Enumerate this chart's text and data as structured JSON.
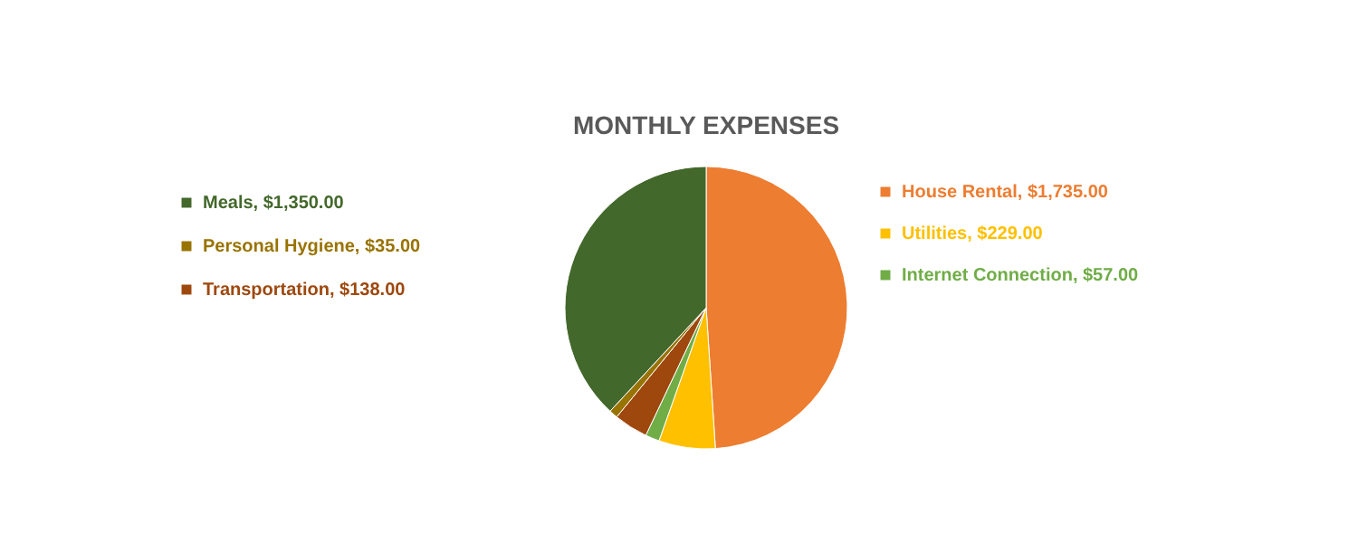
{
  "chart_data": {
    "type": "pie",
    "title": "MONTHLY EXPENSES",
    "categories": [
      "House Rental",
      "Utilities",
      "Internet Connection",
      "Transportation",
      "Personal Hygiene",
      "Meals"
    ],
    "values": [
      1735,
      229,
      57,
      138,
      35,
      1350
    ],
    "value_labels": [
      "$1,735.00",
      "$229.00",
      "$57.00",
      "$138.00",
      "$35.00",
      "$1,350.00"
    ],
    "colors": [
      "#ed7d31",
      "#ffc000",
      "#70ad47",
      "#9e480e",
      "#997300",
      "#43682b"
    ],
    "legend": "top"
  }
}
